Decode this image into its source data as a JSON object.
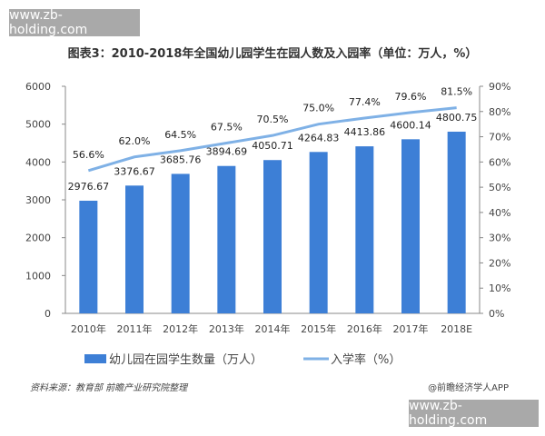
{
  "watermark": "www.zb-holding.com",
  "source": "资料来源：教育部 前瞻产业研究院整理",
  "credit": "@前瞻经济学人APP",
  "chart_data": {
    "type": "bar",
    "title": "图表3：2010-2018年全国幼儿园学生在园人数及入园率（单位：万人，%）",
    "categories": [
      "2010年",
      "2011年",
      "2012年",
      "2013年",
      "2014年",
      "2015年",
      "2016年",
      "2017年",
      "2018E"
    ],
    "series": [
      {
        "name": "幼儿园在园学生数量（万人）",
        "type": "bar",
        "axis": "left",
        "color": "#3d7fd6",
        "values": [
          2976.67,
          3376.67,
          3685.76,
          3894.69,
          4050.71,
          4264.83,
          4413.86,
          4600.14,
          4800.75
        ],
        "labels": [
          "2976.67",
          "3376.67",
          "3685.76",
          "3894.69",
          "4050.71",
          "4264.83",
          "4413.86",
          "4600.14",
          "4800.75"
        ]
      },
      {
        "name": "入学率（%）",
        "type": "line",
        "axis": "right",
        "color": "#7fb1e6",
        "values": [
          56.6,
          62.0,
          64.5,
          67.5,
          70.5,
          75.0,
          77.4,
          79.6,
          81.5
        ],
        "labels": [
          "56.6%",
          "62.0%",
          "64.5%",
          "67.5%",
          "70.5%",
          "75.0%",
          "77.4%",
          "79.6%",
          "81.5%"
        ]
      }
    ],
    "ylim": [
      0,
      6000
    ],
    "yticks": [
      "0",
      "1000",
      "2000",
      "3000",
      "4000",
      "5000",
      "6000"
    ],
    "y2lim": [
      0,
      90
    ],
    "y2ticks": [
      "0%",
      "10%",
      "20%",
      "30%",
      "40%",
      "50%",
      "60%",
      "70%",
      "80%",
      "90%"
    ],
    "grid": false,
    "legend": "bottom"
  }
}
